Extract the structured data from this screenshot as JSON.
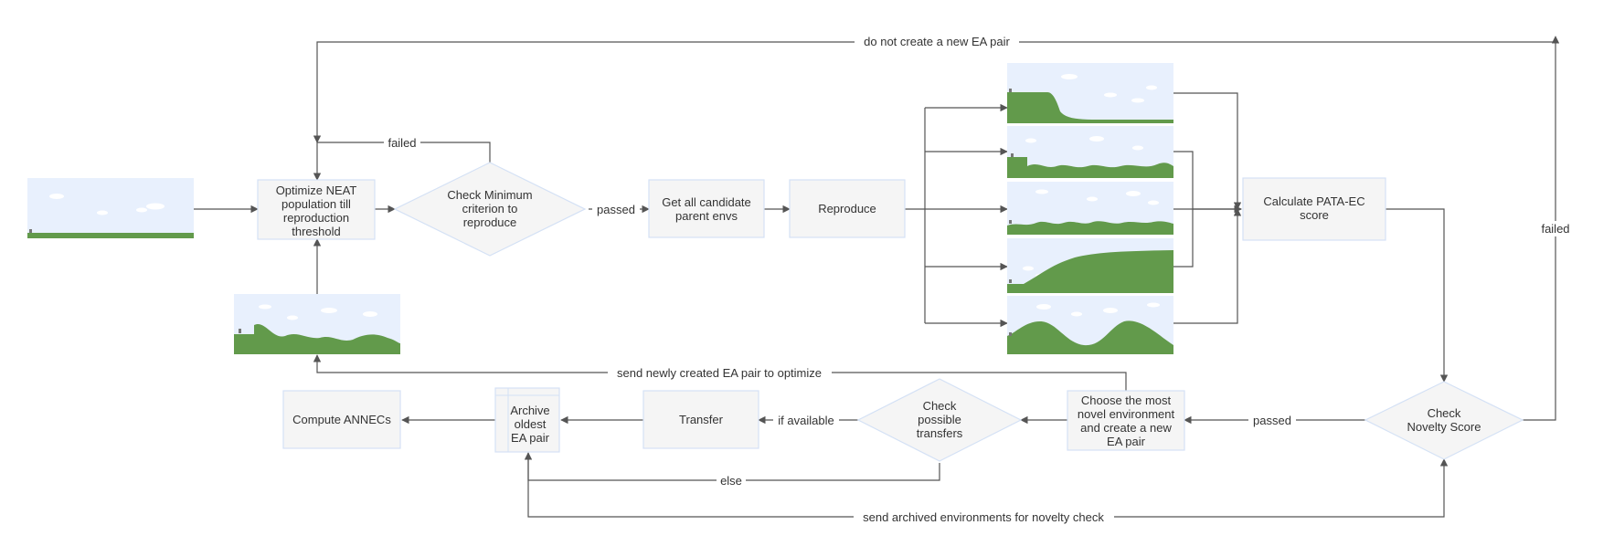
{
  "nodes": {
    "optimize": [
      "Optimize NEAT",
      "population till",
      "reproduction",
      "threshold"
    ],
    "check_min": [
      "Check Minimum",
      "criterion to",
      "reproduce"
    ],
    "get_parents": [
      "Get all candidate",
      "parent envs"
    ],
    "reproduce": [
      "Reproduce"
    ],
    "pata_ec": [
      "Calculate PATA-EC",
      "score"
    ],
    "novelty": [
      "Check",
      "Novelty Score"
    ],
    "choose_novel": [
      "Choose the most",
      "novel environment",
      "and create a new",
      "EA pair"
    ],
    "check_transfers": [
      "Check",
      "possible",
      "transfers"
    ],
    "transfer": [
      "Transfer"
    ],
    "archive": [
      "Archive",
      "oldest",
      "EA pair"
    ],
    "compute_annecs": [
      "Compute ANNECs"
    ]
  },
  "edge_labels": {
    "no_new_pair": "do not create a new EA pair",
    "failed_min": "failed",
    "passed_min": "passed",
    "failed_novelty": "failed",
    "passed_novelty": "passed",
    "send_new_pair": "send newly created EA pair to optimize",
    "if_available": "if available",
    "else": "else",
    "send_archived": "send archived environments for novelty check"
  },
  "colors": {
    "box_fill": "#f5f5f5",
    "box_stroke": "#d4e1f5",
    "edge": "#555555",
    "sky": "#e8f0fd",
    "terrain": "#629a4b",
    "cloud": "#ffffff"
  }
}
